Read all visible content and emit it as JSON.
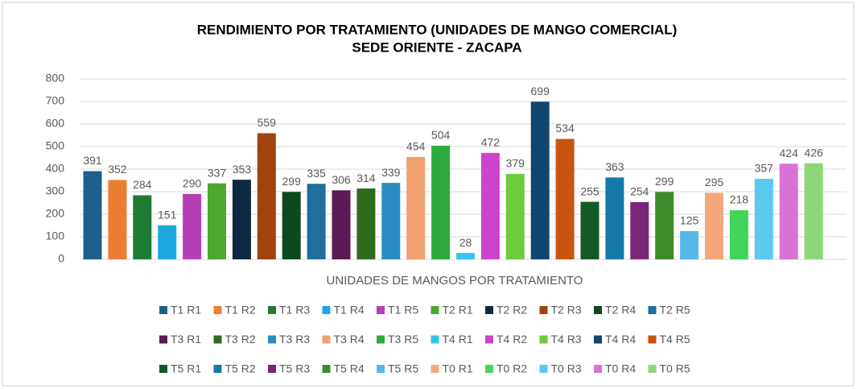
{
  "chart_data": {
    "type": "bar",
    "title": "RENDIMIENTO POR TRATAMIENTO (UNIDADES DE MANGO COMERCIAL)",
    "subtitle": "SEDE ORIENTE - ZACAPA",
    "x_label": "UNIDADES DE MANGOS POR TRATAMIENTO",
    "ylim": [
      0,
      800
    ],
    "yticks": [
      0,
      100,
      200,
      300,
      400,
      500,
      600,
      700,
      800
    ],
    "grid": true,
    "legend": "bottom",
    "series": [
      {
        "name": "T1 R1",
        "color": "#1f5f8b",
        "values": [
          391
        ]
      },
      {
        "name": "T1 R2",
        "color": "#ed7d31",
        "values": [
          352
        ]
      },
      {
        "name": "T1 R3",
        "color": "#1e7b34",
        "values": [
          284
        ]
      },
      {
        "name": "T1 R4",
        "color": "#1ea7e1",
        "values": [
          151
        ]
      },
      {
        "name": "T1 R5",
        "color": "#b63fb5",
        "values": [
          290
        ]
      },
      {
        "name": "T2 R1",
        "color": "#4ea72e",
        "values": [
          337
        ]
      },
      {
        "name": "T2 R2",
        "color": "#0e2841",
        "values": [
          353
        ]
      },
      {
        "name": "T2 R3",
        "color": "#a0430f",
        "values": [
          559
        ]
      },
      {
        "name": "T2 R4",
        "color": "#0b4a1f",
        "values": [
          299
        ]
      },
      {
        "name": "T2 R5",
        "color": "#1f6f9f",
        "values": [
          335
        ]
      },
      {
        "name": "T3 R1",
        "color": "#5b1a55",
        "values": [
          306
        ]
      },
      {
        "name": "T3 R2",
        "color": "#2e6b1f",
        "values": [
          314
        ]
      },
      {
        "name": "T3 R3",
        "color": "#2b8cc4",
        "values": [
          339
        ]
      },
      {
        "name": "T3 R4",
        "color": "#f2a070",
        "values": [
          454
        ]
      },
      {
        "name": "T3 R5",
        "color": "#2eaa3f",
        "values": [
          504
        ]
      },
      {
        "name": "T4 R1",
        "color": "#3bc1ef",
        "values": [
          28
        ]
      },
      {
        "name": "T4 R2",
        "color": "#cc44cc",
        "values": [
          472
        ]
      },
      {
        "name": "T4 R3",
        "color": "#6ccc3b",
        "values": [
          379
        ]
      },
      {
        "name": "T4 R4",
        "color": "#12456e",
        "values": [
          699
        ]
      },
      {
        "name": "T4 R5",
        "color": "#c8550f",
        "values": [
          534
        ]
      },
      {
        "name": "T5 R1",
        "color": "#145a26",
        "values": [
          255
        ]
      },
      {
        "name": "T5 R2",
        "color": "#1479a8",
        "values": [
          363
        ]
      },
      {
        "name": "T5 R3",
        "color": "#7a2678",
        "values": [
          254
        ]
      },
      {
        "name": "T5 R4",
        "color": "#3d8a2a",
        "values": [
          299
        ]
      },
      {
        "name": "T5 R5",
        "color": "#55b8e8",
        "values": [
          125
        ]
      },
      {
        "name": "T0 R1",
        "color": "#f5a87c",
        "values": [
          295
        ]
      },
      {
        "name": "T0 R2",
        "color": "#44d45a",
        "values": [
          218
        ]
      },
      {
        "name": "T0 R3",
        "color": "#5bc8f0",
        "values": [
          357
        ]
      },
      {
        "name": "T0 R4",
        "color": "#d772d7",
        "values": [
          424
        ]
      },
      {
        "name": "T0 R5",
        "color": "#8cd878",
        "values": [
          426
        ]
      }
    ]
  }
}
